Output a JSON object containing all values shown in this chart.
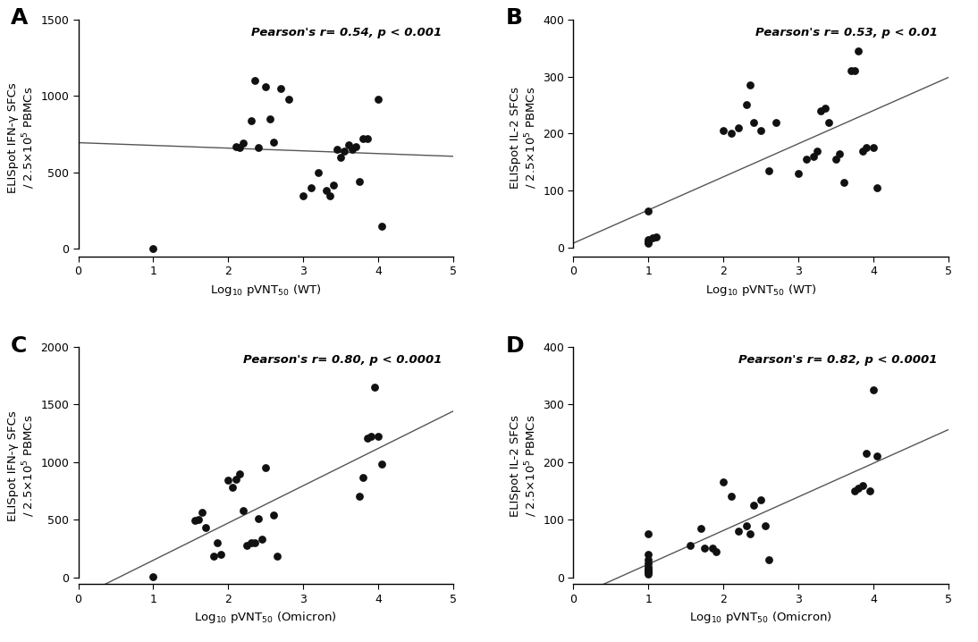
{
  "panel_A": {
    "label": "A",
    "pearson_text": "Pearson's r= 0.54, p < 0.001",
    "xlabel": "Log$_{10}$ pVNT$_{50}$ (WT)",
    "ylabel": "ELISpot IFN-γ SFCs\n/ 2.5×10$^{5}$ PBMCs",
    "xlim": [
      0,
      5
    ],
    "ylim": [
      -50,
      1500
    ],
    "yticks": [
      0,
      500,
      1000,
      1500
    ],
    "xticks": [
      0,
      1,
      2,
      3,
      4,
      5
    ],
    "x": [
      1.0,
      2.1,
      2.15,
      2.2,
      2.3,
      2.35,
      2.4,
      2.5,
      2.55,
      2.6,
      2.7,
      2.8,
      3.0,
      3.1,
      3.2,
      3.3,
      3.35,
      3.4,
      3.45,
      3.5,
      3.55,
      3.6,
      3.65,
      3.7,
      3.75,
      3.8,
      3.85,
      4.0,
      4.05
    ],
    "y": [
      5,
      670,
      660,
      690,
      840,
      1100,
      660,
      1060,
      850,
      700,
      1050,
      980,
      350,
      400,
      500,
      380,
      350,
      420,
      650,
      600,
      640,
      680,
      650,
      670,
      440,
      720,
      720,
      980,
      150
    ]
  },
  "panel_B": {
    "label": "B",
    "pearson_text": "Pearson's r= 0.53, p < 0.01",
    "xlabel": "Log$_{10}$ pVNT$_{50}$ (WT)",
    "ylabel": "ELISpot IL-2 SFCs\n/ 2.5×10$^{5}$ PBMCs",
    "xlim": [
      0,
      5
    ],
    "ylim": [
      -15,
      400
    ],
    "yticks": [
      0,
      100,
      200,
      300,
      400
    ],
    "xticks": [
      0,
      1,
      2,
      3,
      4,
      5
    ],
    "x": [
      1.0,
      1.0,
      1.0,
      1.0,
      1.0,
      1.05,
      1.1,
      2.0,
      2.1,
      2.2,
      2.3,
      2.35,
      2.4,
      2.5,
      2.6,
      2.7,
      3.0,
      3.1,
      3.2,
      3.25,
      3.3,
      3.35,
      3.4,
      3.5,
      3.55,
      3.6,
      3.7,
      3.75,
      3.8,
      3.85,
      3.9,
      4.0,
      4.05
    ],
    "y": [
      65,
      15,
      10,
      12,
      8,
      18,
      20,
      205,
      200,
      210,
      250,
      285,
      220,
      205,
      135,
      220,
      130,
      155,
      160,
      170,
      240,
      245,
      220,
      155,
      165,
      115,
      310,
      310,
      345,
      170,
      175,
      175,
      105
    ]
  },
  "panel_C": {
    "label": "C",
    "pearson_text": "Pearson's r= 0.80, p < 0.0001",
    "xlabel": "Log$_{10}$ pVNT$_{50}$ (Omicron)",
    "ylabel": "ELISpot IFN-γ SFCs\n/ 2.5×10$^{5}$ PBMCs",
    "xlim": [
      0,
      5
    ],
    "ylim": [
      -60,
      2000
    ],
    "yticks": [
      0,
      500,
      1000,
      1500,
      2000
    ],
    "xticks": [
      0,
      1,
      2,
      3,
      4,
      5
    ],
    "x": [
      1.0,
      1.55,
      1.6,
      1.65,
      1.7,
      1.8,
      1.85,
      1.9,
      2.0,
      2.05,
      2.1,
      2.15,
      2.2,
      2.25,
      2.3,
      2.35,
      2.4,
      2.45,
      2.5,
      2.6,
      2.65,
      3.75,
      3.8,
      3.85,
      3.9,
      3.95,
      4.0,
      4.05
    ],
    "y": [
      5,
      490,
      500,
      560,
      430,
      180,
      300,
      200,
      840,
      780,
      850,
      900,
      580,
      280,
      300,
      300,
      510,
      330,
      950,
      540,
      180,
      700,
      870,
      1210,
      1220,
      1650,
      1220,
      980
    ]
  },
  "panel_D": {
    "label": "D",
    "pearson_text": "Pearson's r= 0.82, p < 0.0001",
    "xlabel": "Log$_{10}$ pVNT$_{50}$ (Omicron)",
    "ylabel": "ELISpot IL-2 SFCs\n/ 2.5×10$^{5}$ PBMCs",
    "xlim": [
      0,
      5
    ],
    "ylim": [
      -12,
      400
    ],
    "yticks": [
      0,
      100,
      200,
      300,
      400
    ],
    "xticks": [
      0,
      1,
      2,
      3,
      4,
      5
    ],
    "x": [
      1.0,
      1.0,
      1.0,
      1.0,
      1.0,
      1.0,
      1.0,
      1.0,
      1.0,
      1.0,
      1.55,
      1.7,
      1.75,
      1.85,
      1.9,
      2.0,
      2.1,
      2.2,
      2.3,
      2.35,
      2.4,
      2.5,
      2.55,
      2.6,
      3.75,
      3.8,
      3.85,
      3.9,
      3.95,
      4.0,
      4.05
    ],
    "y": [
      5,
      8,
      10,
      12,
      15,
      18,
      25,
      30,
      40,
      75,
      55,
      85,
      50,
      50,
      45,
      165,
      140,
      80,
      90,
      75,
      125,
      135,
      90,
      30,
      150,
      155,
      160,
      215,
      150,
      325,
      210
    ]
  },
  "background_color": "#ffffff",
  "dot_color": "#111111",
  "line_color": "#555555",
  "dot_size": 40,
  "panel_label_fontsize": 18,
  "pearson_fontsize": 9.5,
  "axis_label_fontsize": 9.5,
  "tick_fontsize": 9,
  "line_width": 1.0
}
